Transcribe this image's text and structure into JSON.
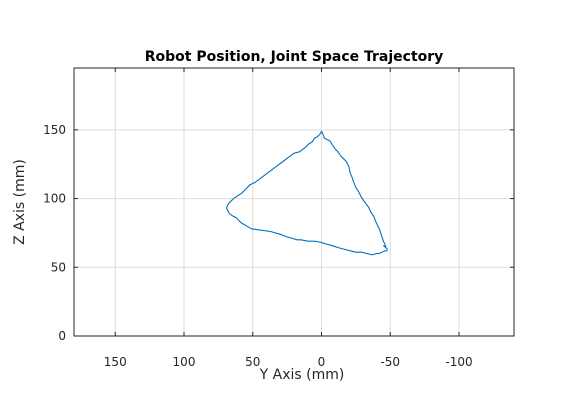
{
  "chart_data": {
    "type": "line",
    "title": "Robot Position, Joint Space Trajectory",
    "xlabel": "Y Axis (mm)",
    "ylabel": "Z Axis (mm)",
    "xlim": [
      180,
      -140
    ],
    "ylim": [
      0,
      195
    ],
    "x_reversed": true,
    "grid": true,
    "xticks": [
      150,
      100,
      50,
      0,
      -50,
      -100
    ],
    "yticks": [
      0,
      50,
      100,
      150
    ],
    "xtick_labels": [
      "150",
      "100",
      "50",
      "0",
      "-50",
      "-100"
    ],
    "ytick_labels": [
      "0",
      "50",
      "100",
      "150"
    ],
    "series": [
      {
        "color": "#0072bd",
        "x": [
          -48,
          -46,
          -44,
          -42,
          -40,
          -37,
          -33,
          -29,
          -25,
          -21,
          -17,
          -13,
          -10,
          -7,
          -3,
          0,
          5,
          10,
          15,
          18,
          21,
          25,
          30,
          37,
          44,
          51,
          56,
          58,
          60,
          62,
          64,
          67,
          69,
          68,
          66,
          64,
          61,
          58,
          55,
          52,
          48,
          44,
          40,
          36,
          32,
          28,
          24,
          20,
          16,
          12,
          9,
          7,
          5,
          3,
          1,
          0,
          -1,
          -2,
          -4,
          -6,
          -8,
          -10,
          -12,
          -14,
          -16,
          -18,
          -20,
          -21,
          -22,
          -23,
          -25,
          -27,
          -29,
          -31,
          -34,
          -36,
          -38,
          -40,
          -42,
          -43,
          -44,
          -45,
          -46,
          -47,
          -48,
          -45
        ],
        "y": [
          62,
          62,
          61,
          60,
          60,
          59,
          60,
          61,
          61,
          62,
          63,
          64,
          65,
          66,
          67,
          68,
          69,
          69,
          70,
          70,
          71,
          72,
          74,
          76,
          77,
          78,
          81,
          82,
          84,
          86,
          87,
          89,
          93,
          96,
          98,
          100,
          102,
          104,
          107,
          110,
          112,
          115,
          118,
          121,
          124,
          127,
          130,
          133,
          134,
          137,
          140,
          141,
          144,
          145,
          147,
          149,
          147,
          144,
          143,
          142,
          139,
          136,
          134,
          131,
          129,
          127,
          123,
          118,
          116,
          113,
          108,
          105,
          101,
          98,
          94,
          90,
          87,
          82,
          78,
          75,
          72,
          69,
          67,
          64,
          63,
          66
        ]
      }
    ]
  }
}
